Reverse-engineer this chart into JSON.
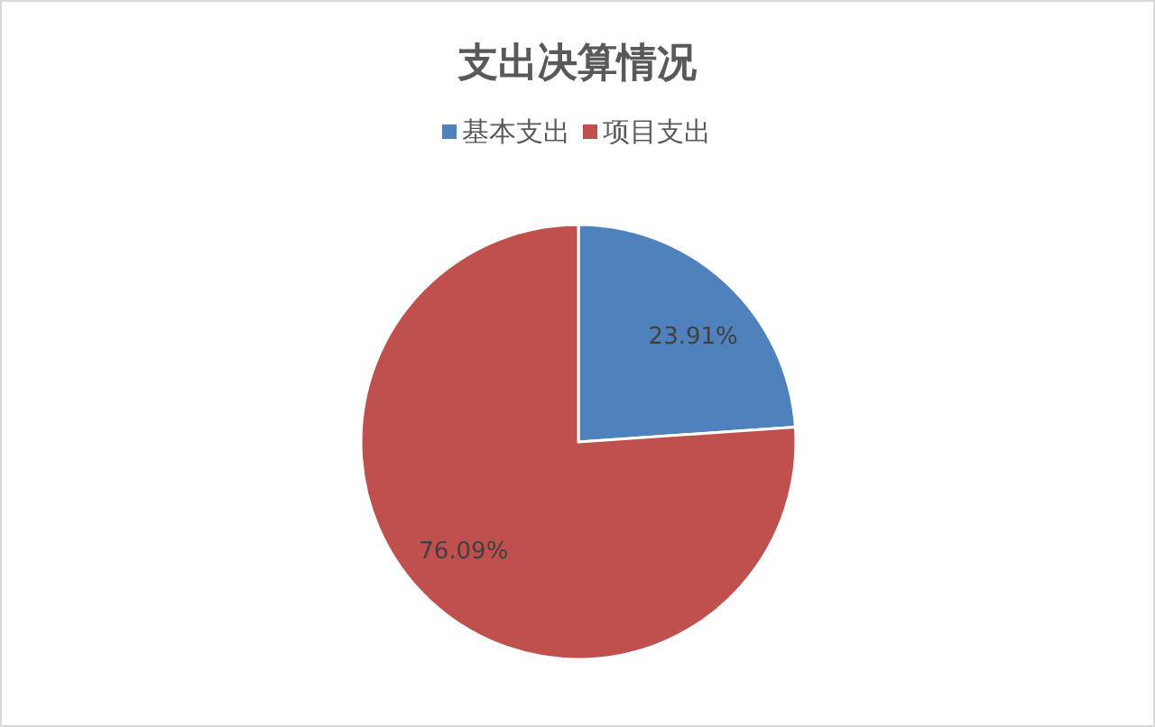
{
  "chart_data": {
    "type": "pie",
    "title": "支出决算情况",
    "categories": [
      "基本支出",
      "项目支出"
    ],
    "values": [
      23.91,
      76.09
    ],
    "colors": [
      "#4f81bd",
      "#c0504d"
    ],
    "value_labels": [
      "23.91%",
      "76.09%"
    ],
    "legend": "top"
  }
}
